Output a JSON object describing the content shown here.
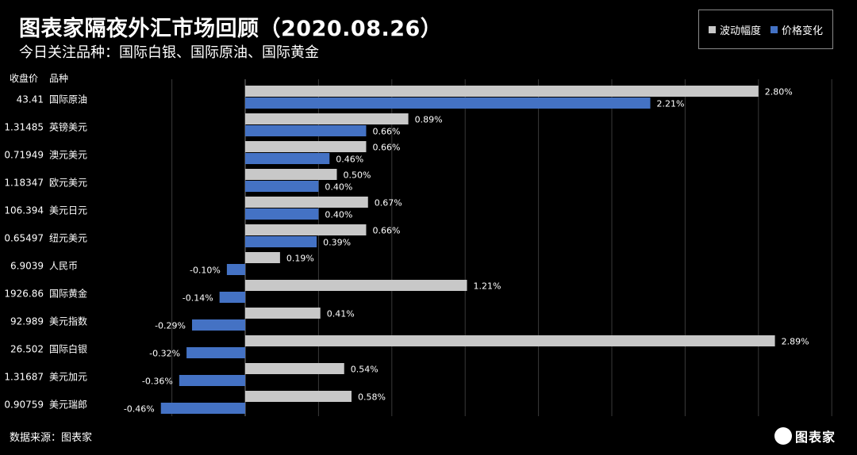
{
  "header": {
    "title": "图表家隔夜外汇市场回顾（2020.08.26）",
    "subtitle": "今日关注品种：国际白银、国际原油、国际黄金"
  },
  "columns": {
    "price_header": "收盘价",
    "item_header": "品种"
  },
  "footer": {
    "source": "数据来源：图表家"
  },
  "brand": {
    "name": "图表家"
  },
  "colors": {
    "range": "#c8c8c8",
    "change": "#4472c4",
    "background": "#000000",
    "grid": "#3a3a3a"
  },
  "chart_data": {
    "type": "bar",
    "orientation": "horizontal",
    "categories": [
      "国际原油",
      "英镑美元",
      "澳元美元",
      "欧元美元",
      "美元日元",
      "纽元美元",
      "人民币",
      "国际黄金",
      "美元指数",
      "国际白银",
      "美元加元",
      "美元瑞郎"
    ],
    "closing_prices": [
      "43.41",
      "1.31485",
      "0.71949",
      "1.18347",
      "106.394",
      "0.65497",
      "6.9039",
      "1926.86",
      "92.989",
      "26.502",
      "1.31687",
      "0.90759"
    ],
    "series": [
      {
        "name": "波动幅度",
        "values": [
          2.8,
          0.89,
          0.66,
          0.5,
          0.67,
          0.66,
          0.19,
          1.21,
          0.41,
          2.89,
          0.54,
          0.58
        ]
      },
      {
        "name": "价格变化",
        "values": [
          2.21,
          0.66,
          0.46,
          0.4,
          0.4,
          0.39,
          -0.1,
          -0.14,
          -0.29,
          -0.32,
          -0.36,
          -0.46
        ]
      }
    ],
    "value_unit": "%",
    "xlim": [
      -0.6,
      3.2
    ],
    "grid": true,
    "legend_position": "top-right"
  }
}
